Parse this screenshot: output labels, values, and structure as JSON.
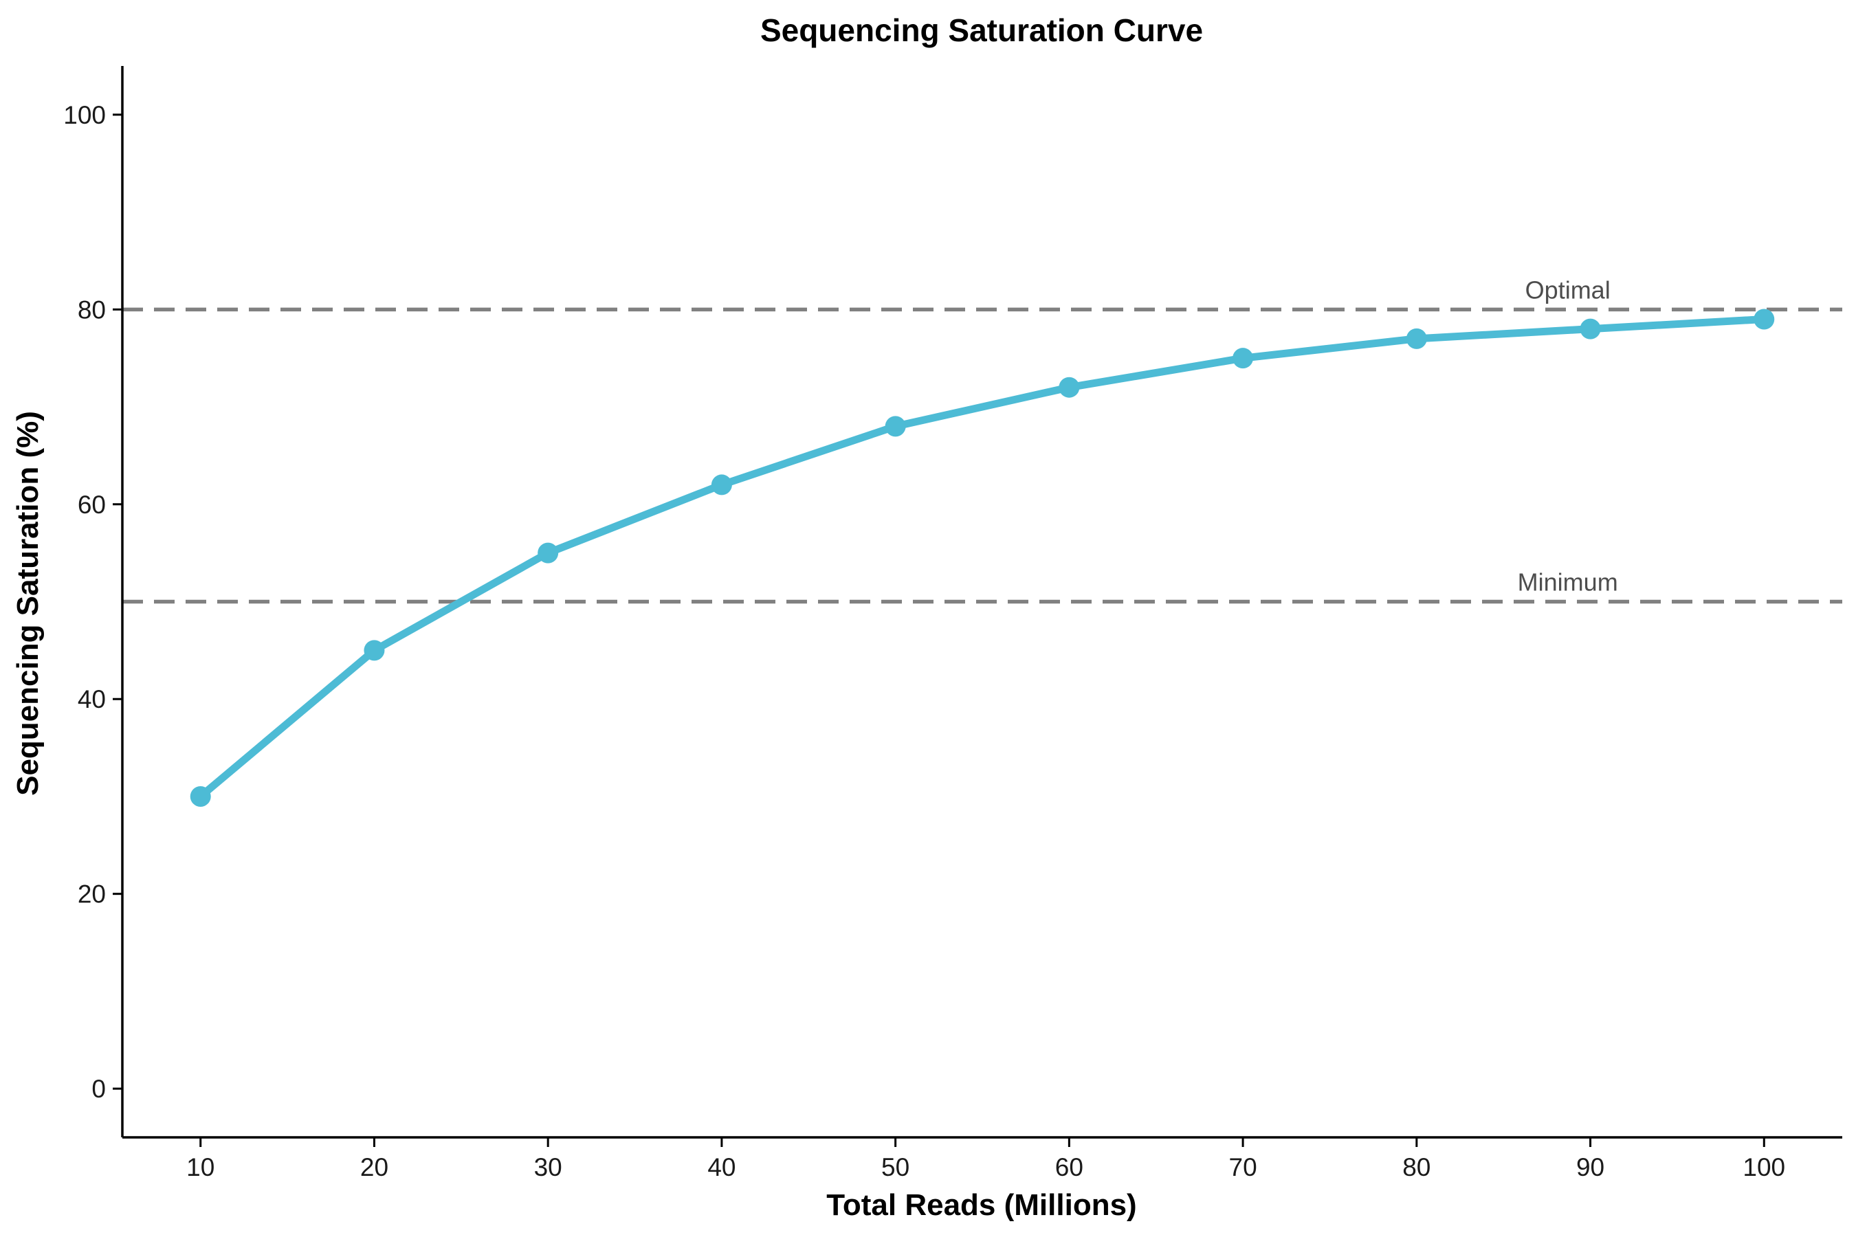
{
  "chart_data": {
    "type": "line",
    "title": "Sequencing Saturation Curve",
    "xlabel": "Total Reads (Millions)",
    "ylabel": "Sequencing Saturation (%)",
    "x": [
      10,
      20,
      30,
      40,
      50,
      60,
      70,
      80,
      90,
      100
    ],
    "series": [
      {
        "values": [
          30,
          45,
          55,
          62,
          68,
          72,
          75,
          77,
          78,
          79
        ],
        "color": "#4DBBD5"
      }
    ],
    "xticks": [
      10,
      20,
      30,
      40,
      50,
      60,
      70,
      80,
      90,
      100
    ],
    "yticks": [
      0,
      20,
      40,
      60,
      80,
      100
    ],
    "xlim": [
      5.5,
      104.5
    ],
    "ylim": [
      -5,
      105
    ],
    "grid": false,
    "reference_lines": [
      {
        "label": "Optimal",
        "y": 80,
        "color": "#808080",
        "style": "dashed"
      },
      {
        "label": "Minimum",
        "y": 50,
        "color": "#808080",
        "style": "dashed"
      }
    ]
  }
}
